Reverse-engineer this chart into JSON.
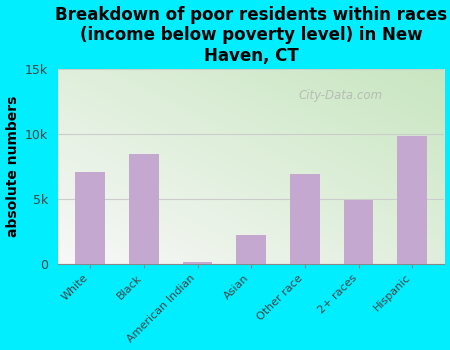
{
  "categories": [
    "White",
    "Black",
    "American Indian",
    "Asian",
    "Other race",
    "2+ races",
    "Hispanic"
  ],
  "values": [
    7100,
    8500,
    150,
    2200,
    6900,
    4900,
    9900
  ],
  "bar_color": "#c4a8d0",
  "title": "Breakdown of poor residents within races\n(income below poverty level) in New\nHaven, CT",
  "ylabel": "absolute numbers",
  "ylim": [
    0,
    15000
  ],
  "yticks": [
    0,
    5000,
    10000,
    15000
  ],
  "ytick_labels": [
    "0",
    "5k",
    "10k",
    "15k"
  ],
  "background_color": "#00eeff",
  "plot_bg_color_top_left": "#c8e6c0",
  "plot_bg_color_bottom_right": "#f8f8f8",
  "watermark": "City-Data.com",
  "title_fontsize": 12,
  "ylabel_fontsize": 10,
  "tick_color": "#888888",
  "gridline_color": "#cccccc"
}
